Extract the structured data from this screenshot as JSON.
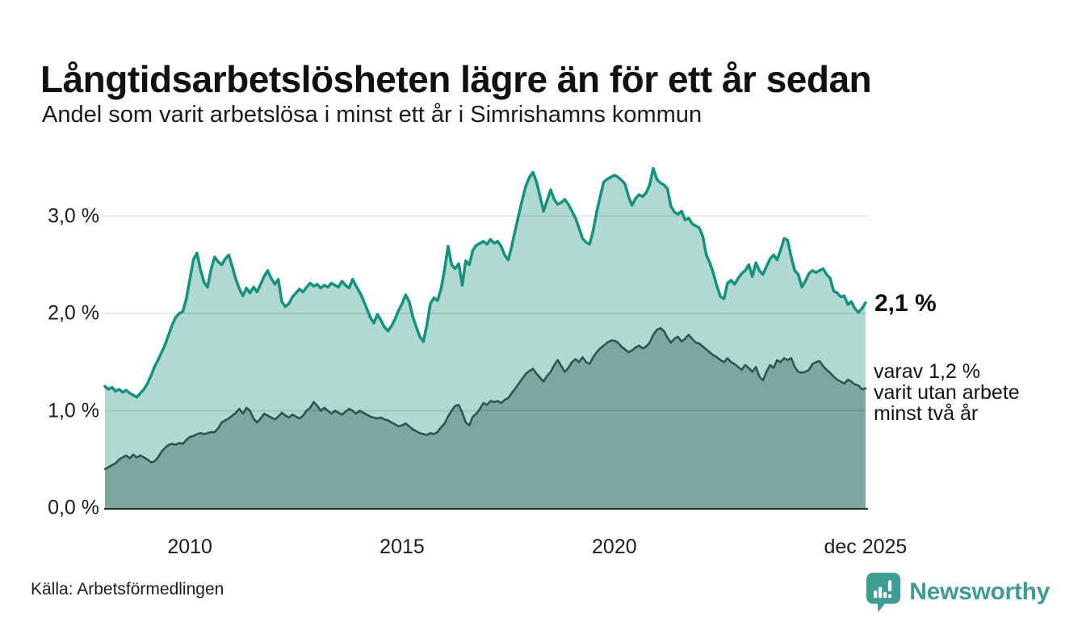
{
  "header": {
    "title": "Långtidsarbetslösheten lägre än för ett år sedan",
    "subtitle": "Andel som varit arbetslösa i minst ett år i Simrishamns kommun"
  },
  "chart_data": {
    "type": "area",
    "title": "Långtidsarbetslösheten lägre än för ett år sedan",
    "subtitle": "Andel som varit arbetslösa i minst ett år i Simrishamns kommun",
    "x_start_year": 2008,
    "x_step_months": 1,
    "x_end_label": "dec 2025",
    "ylim": [
      0,
      3.6
    ],
    "grid": true,
    "y_ticks": [
      {
        "label": "0,0 %",
        "value": 0
      },
      {
        "label": "1,0 %",
        "value": 1
      },
      {
        "label": "2,0 %",
        "value": 2
      },
      {
        "label": "3,0 %",
        "value": 3
      }
    ],
    "x_ticks": [
      {
        "label": "2010",
        "year": 2010
      },
      {
        "label": "2015",
        "year": 2015
      },
      {
        "label": "2020",
        "year": 2020
      },
      {
        "label": "dec 2025",
        "year": 2025.917
      }
    ],
    "series": [
      {
        "name": "Arbetslösa minst ett år",
        "line_color": "#14917f",
        "fill_color": "#b0d9d2",
        "end_value": 2.1,
        "values": [
          1.25,
          1.22,
          1.24,
          1.2,
          1.22,
          1.19,
          1.21,
          1.18,
          1.16,
          1.14,
          1.18,
          1.22,
          1.28,
          1.36,
          1.45,
          1.52,
          1.6,
          1.68,
          1.78,
          1.88,
          1.96,
          2.0,
          2.02,
          2.15,
          2.35,
          2.55,
          2.62,
          2.45,
          2.32,
          2.27,
          2.45,
          2.58,
          2.53,
          2.5,
          2.56,
          2.6,
          2.48,
          2.35,
          2.25,
          2.18,
          2.26,
          2.21,
          2.27,
          2.22,
          2.3,
          2.38,
          2.44,
          2.36,
          2.3,
          2.35,
          2.12,
          2.07,
          2.1,
          2.17,
          2.21,
          2.25,
          2.22,
          2.27,
          2.31,
          2.28,
          2.3,
          2.26,
          2.29,
          2.27,
          2.31,
          2.29,
          2.27,
          2.33,
          2.29,
          2.26,
          2.35,
          2.28,
          2.22,
          2.14,
          2.05,
          1.96,
          1.9,
          1.99,
          1.93,
          1.86,
          1.82,
          1.87,
          1.94,
          2.03,
          2.1,
          2.19,
          2.12,
          1.97,
          1.86,
          1.76,
          1.71,
          1.88,
          2.1,
          2.16,
          2.13,
          2.25,
          2.45,
          2.69,
          2.5,
          2.46,
          2.51,
          2.29,
          2.54,
          2.5,
          2.65,
          2.7,
          2.72,
          2.74,
          2.71,
          2.76,
          2.72,
          2.74,
          2.69,
          2.6,
          2.55,
          2.69,
          2.86,
          3.02,
          3.17,
          3.31,
          3.4,
          3.45,
          3.35,
          3.2,
          3.05,
          3.16,
          3.27,
          3.17,
          3.12,
          3.14,
          3.17,
          3.12,
          3.05,
          2.98,
          2.88,
          2.77,
          2.73,
          2.71,
          2.85,
          3.04,
          3.2,
          3.35,
          3.38,
          3.4,
          3.42,
          3.4,
          3.37,
          3.33,
          3.2,
          3.11,
          3.18,
          3.22,
          3.2,
          3.24,
          3.32,
          3.49,
          3.38,
          3.34,
          3.32,
          3.28,
          3.1,
          3.04,
          3.02,
          3.05,
          2.96,
          2.98,
          2.92,
          2.9,
          2.88,
          2.79,
          2.6,
          2.52,
          2.41,
          2.28,
          2.17,
          2.15,
          2.31,
          2.34,
          2.3,
          2.36,
          2.41,
          2.44,
          2.5,
          2.38,
          2.52,
          2.44,
          2.4,
          2.48,
          2.56,
          2.6,
          2.55,
          2.65,
          2.77,
          2.75,
          2.58,
          2.44,
          2.4,
          2.27,
          2.33,
          2.41,
          2.44,
          2.42,
          2.44,
          2.46,
          2.4,
          2.36,
          2.23,
          2.21,
          2.17,
          2.18,
          2.09,
          2.12,
          2.05,
          2.01,
          2.05,
          2.11
        ]
      },
      {
        "name": "Arbetslösa minst två år",
        "line_color": "#2f4f4b",
        "fill_color": "#7ba7a0",
        "end_value": 1.2,
        "values": [
          0.4,
          0.42,
          0.44,
          0.46,
          0.5,
          0.52,
          0.54,
          0.51,
          0.55,
          0.52,
          0.54,
          0.52,
          0.5,
          0.47,
          0.48,
          0.52,
          0.58,
          0.62,
          0.65,
          0.66,
          0.65,
          0.67,
          0.66,
          0.7,
          0.73,
          0.74,
          0.76,
          0.77,
          0.76,
          0.77,
          0.78,
          0.78,
          0.82,
          0.88,
          0.9,
          0.92,
          0.95,
          0.98,
          1.02,
          0.97,
          1.03,
          1.0,
          0.92,
          0.88,
          0.92,
          0.97,
          0.95,
          0.93,
          0.91,
          0.94,
          0.98,
          0.95,
          0.93,
          0.96,
          0.94,
          0.92,
          0.95,
          1.0,
          1.03,
          1.09,
          1.05,
          1.0,
          1.03,
          1.0,
          0.97,
          1.0,
          0.98,
          0.96,
          0.99,
          1.02,
          1.0,
          0.97,
          1.0,
          0.98,
          0.96,
          0.94,
          0.93,
          0.92,
          0.93,
          0.91,
          0.9,
          0.88,
          0.86,
          0.84,
          0.85,
          0.87,
          0.84,
          0.81,
          0.79,
          0.77,
          0.76,
          0.75,
          0.77,
          0.76,
          0.78,
          0.83,
          0.87,
          0.94,
          1.0,
          1.05,
          1.06,
          0.98,
          0.88,
          0.85,
          0.94,
          0.97,
          1.02,
          1.08,
          1.06,
          1.1,
          1.09,
          1.1,
          1.08,
          1.11,
          1.13,
          1.18,
          1.23,
          1.28,
          1.33,
          1.38,
          1.41,
          1.43,
          1.38,
          1.34,
          1.3,
          1.36,
          1.4,
          1.47,
          1.52,
          1.46,
          1.4,
          1.44,
          1.5,
          1.53,
          1.5,
          1.55,
          1.5,
          1.48,
          1.55,
          1.6,
          1.64,
          1.67,
          1.7,
          1.72,
          1.72,
          1.7,
          1.66,
          1.63,
          1.6,
          1.62,
          1.65,
          1.67,
          1.64,
          1.66,
          1.7,
          1.78,
          1.83,
          1.85,
          1.82,
          1.75,
          1.7,
          1.74,
          1.76,
          1.71,
          1.74,
          1.78,
          1.74,
          1.7,
          1.69,
          1.66,
          1.63,
          1.6,
          1.57,
          1.55,
          1.52,
          1.5,
          1.54,
          1.5,
          1.48,
          1.45,
          1.42,
          1.47,
          1.44,
          1.4,
          1.45,
          1.35,
          1.31,
          1.4,
          1.47,
          1.44,
          1.52,
          1.5,
          1.54,
          1.52,
          1.54,
          1.45,
          1.4,
          1.39,
          1.4,
          1.42,
          1.48,
          1.5,
          1.51,
          1.46,
          1.42,
          1.39,
          1.35,
          1.32,
          1.3,
          1.28,
          1.32,
          1.3,
          1.27,
          1.26,
          1.22,
          1.23
        ]
      }
    ],
    "annotations": {
      "end_value_label": "2,1 %",
      "secondary_label_lines": [
        "varav 1,2 %",
        "varit utan arbete",
        "minst två år"
      ]
    },
    "colors": {
      "grid": "#dddddd",
      "axis": "#2b2b2b",
      "brand_teal": "#3f9c92"
    }
  },
  "footer": {
    "source": "Källa: Arbetsförmedlingen",
    "brand": "Newsworthy"
  }
}
